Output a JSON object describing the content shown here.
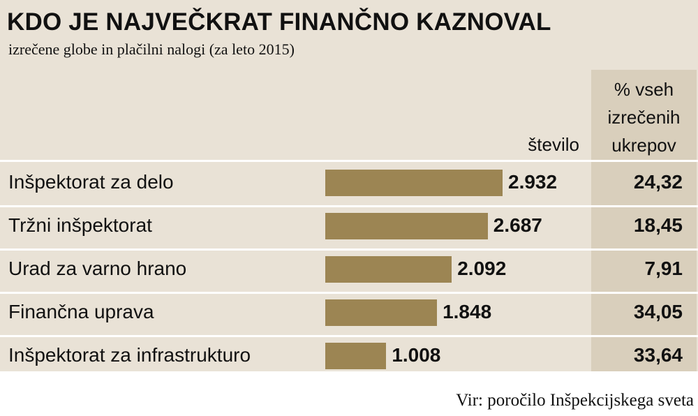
{
  "chart_data": {
    "type": "bar",
    "title": "KDO JE NAJVEČKRAT FINANČNO KAZNOVAL",
    "subtitle": "izrečene globe in plačilni nalogi (za leto 2015)",
    "categories": [
      "Inšpektorat za delo",
      "Tržni inšpektorat",
      "Urad za varno hrano",
      "Finančna uprava",
      "Inšpektorat za infrastrukturo"
    ],
    "series": [
      {
        "name": "število",
        "color": "#9c8553",
        "values": [
          2932,
          2687,
          2092,
          1848,
          1008
        ],
        "value_labels": [
          "2.932",
          "2.687",
          "2.092",
          "1.848",
          "1.008"
        ]
      },
      {
        "name": "% vseh izrečenih ukrepov",
        "values": [
          24.32,
          18.45,
          7.91,
          34.05,
          33.64
        ],
        "value_labels": [
          "24,32",
          "18,45",
          "7,91",
          "34,05",
          "33,64"
        ]
      }
    ],
    "source": "Vir: poročilo Inšpekcijskega sveta"
  }
}
